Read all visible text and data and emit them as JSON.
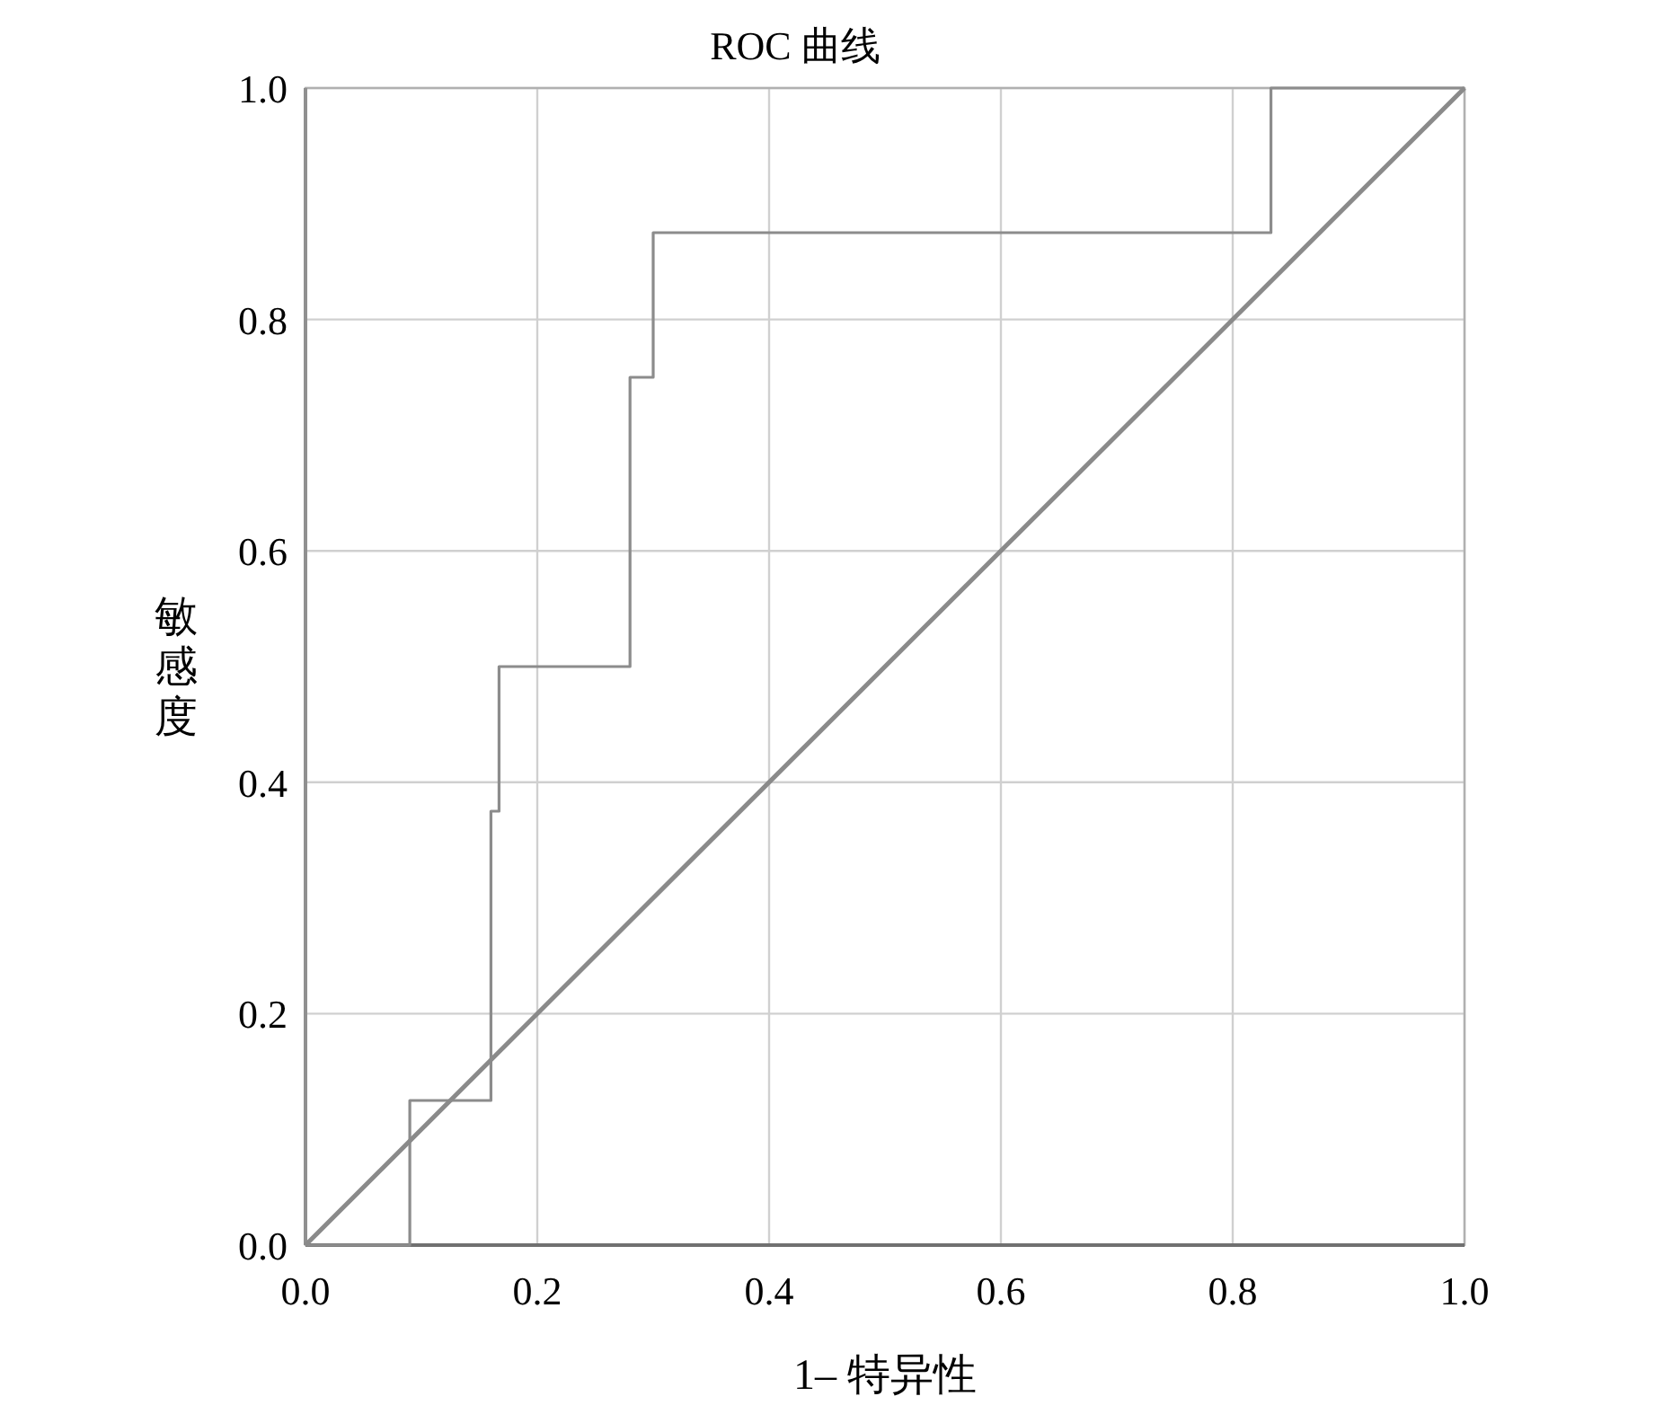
{
  "chart_data": {
    "type": "line",
    "title": "ROC 曲线",
    "xlabel": "1– 特异性",
    "ylabel": "敏感度",
    "series": [
      {
        "type": "step",
        "color": "#8c8c8c",
        "x": [
          0,
          0.09,
          0.16,
          0.167,
          0.28,
          0.3,
          0.833,
          1.0
        ],
        "values": [
          0,
          0.125,
          0.375,
          0.5,
          0.75,
          0.875,
          1.0,
          1.0
        ]
      },
      {
        "type": "line",
        "color": "#8a8a8a",
        "x": [
          0,
          1.0
        ],
        "values": [
          0,
          1.0
        ]
      }
    ],
    "xlim": [
      0,
      1.0
    ],
    "ylim": [
      0,
      1.0
    ],
    "xticks": [
      {
        "value": 0,
        "label": "0.0"
      },
      {
        "value": 0.2,
        "label": "0.2"
      },
      {
        "value": 0.4,
        "label": "0.4"
      },
      {
        "value": 0.6,
        "label": "0.6"
      },
      {
        "value": 0.8,
        "label": "0.8"
      },
      {
        "value": 1.0,
        "label": "1.0"
      }
    ],
    "yticks": [
      {
        "value": 0,
        "label": "0.0"
      },
      {
        "value": 0.2,
        "label": "0.2"
      },
      {
        "value": 0.4,
        "label": "0.4"
      },
      {
        "value": 0.6,
        "label": "0.6"
      },
      {
        "value": 0.8,
        "label": "0.8"
      },
      {
        "value": 1.0,
        "label": "1.0"
      }
    ],
    "grid": true
  }
}
